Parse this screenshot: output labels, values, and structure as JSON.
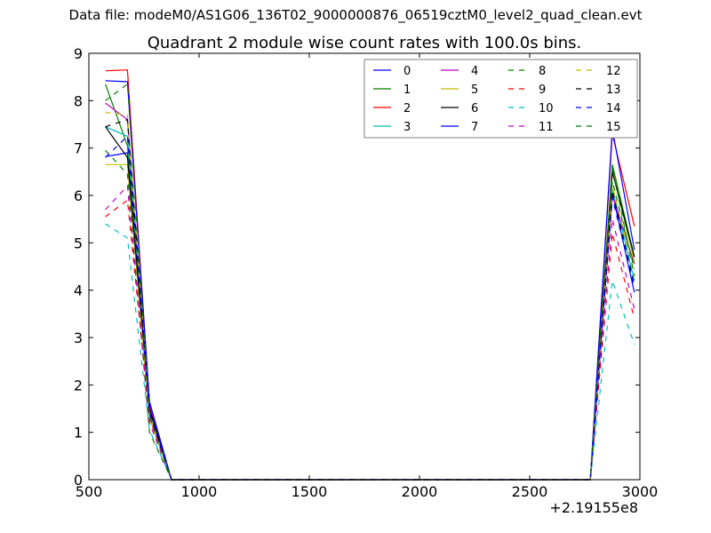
{
  "header": {
    "data_file": "Data file: modeM0/AS1G06_136T02_9000000876_06519cztM0_level2_quad_clean.evt"
  },
  "chart_data": {
    "type": "line",
    "title": "Quadrant 2 module wise count rates with 100.0s bins.",
    "xlabel": "",
    "ylabel": "",
    "x_offset_label": "+2.19155e8",
    "xlim": [
      500,
      3000
    ],
    "ylim": [
      0,
      9
    ],
    "x_ticks": [
      500,
      1000,
      1500,
      2000,
      2500,
      3000
    ],
    "y_ticks": [
      0,
      1,
      2,
      3,
      4,
      5,
      6,
      7,
      8,
      9
    ],
    "grid": false,
    "legend": {
      "location": "top-right",
      "columns": 4
    },
    "x": [
      575,
      675,
      775,
      875,
      975,
      1075,
      1175,
      1275,
      1375,
      1475,
      1575,
      1675,
      1775,
      1875,
      1975,
      2075,
      2175,
      2275,
      2375,
      2475,
      2575,
      2675,
      2775,
      2875,
      2975
    ],
    "series": [
      {
        "name": "0",
        "color": "#0000ff",
        "dash": "solid",
        "values": [
          6.82,
          6.9,
          1.55,
          0,
          0,
          0,
          0,
          0,
          0,
          0,
          0,
          0,
          0,
          0,
          0,
          0,
          0,
          0,
          0,
          0,
          0,
          0,
          0,
          6.05,
          3.95
        ]
      },
      {
        "name": "1",
        "color": "#008000",
        "dash": "solid",
        "values": [
          8.35,
          7.05,
          1.5,
          0,
          0,
          0,
          0,
          0,
          0,
          0,
          0,
          0,
          0,
          0,
          0,
          0,
          0,
          0,
          0,
          0,
          0,
          0,
          0,
          6.65,
          4.7
        ]
      },
      {
        "name": "2",
        "color": "#ff0000",
        "dash": "solid",
        "values": [
          8.63,
          8.65,
          1.6,
          0,
          0,
          0,
          0,
          0,
          0,
          0,
          0,
          0,
          0,
          0,
          0,
          0,
          0,
          0,
          0,
          0,
          0,
          0,
          0,
          7.3,
          5.35
        ]
      },
      {
        "name": "3",
        "color": "#00bfbf",
        "dash": "solid",
        "values": [
          7.45,
          7.25,
          1.45,
          0,
          0,
          0,
          0,
          0,
          0,
          0,
          0,
          0,
          0,
          0,
          0,
          0,
          0,
          0,
          0,
          0,
          0,
          0,
          0,
          6.15,
          4.2
        ]
      },
      {
        "name": "4",
        "color": "#bf00bf",
        "dash": "solid",
        "values": [
          7.95,
          7.6,
          1.55,
          0,
          0,
          0,
          0,
          0,
          0,
          0,
          0,
          0,
          0,
          0,
          0,
          0,
          0,
          0,
          0,
          0,
          0,
          0,
          0,
          6.0,
          4.55
        ]
      },
      {
        "name": "5",
        "color": "#bfbf00",
        "dash": "solid",
        "values": [
          6.65,
          6.65,
          1.3,
          0,
          0,
          0,
          0,
          0,
          0,
          0,
          0,
          0,
          0,
          0,
          0,
          0,
          0,
          0,
          0,
          0,
          0,
          0,
          0,
          6.55,
          4.6
        ]
      },
      {
        "name": "6",
        "color": "#000000",
        "dash": "solid",
        "values": [
          7.45,
          6.8,
          1.5,
          0,
          0,
          0,
          0,
          0,
          0,
          0,
          0,
          0,
          0,
          0,
          0,
          0,
          0,
          0,
          0,
          0,
          0,
          0,
          0,
          6.5,
          4.7
        ]
      },
      {
        "name": "7",
        "color": "#0000ff",
        "dash": "solid",
        "values": [
          8.42,
          8.4,
          1.65,
          0,
          0,
          0,
          0,
          0,
          0,
          0,
          0,
          0,
          0,
          0,
          0,
          0,
          0,
          0,
          0,
          0,
          0,
          0,
          0,
          7.4,
          4.85
        ]
      },
      {
        "name": "8",
        "color": "#008000",
        "dash": "dashed",
        "values": [
          6.95,
          6.45,
          1.0,
          0,
          0,
          0,
          0,
          0,
          0,
          0,
          0,
          0,
          0,
          0,
          0,
          0,
          0,
          0,
          0,
          0,
          0,
          0,
          0,
          6.3,
          4.45
        ]
      },
      {
        "name": "9",
        "color": "#ff0000",
        "dash": "dashed",
        "values": [
          5.55,
          5.9,
          1.3,
          0,
          0,
          0,
          0,
          0,
          0,
          0,
          0,
          0,
          0,
          0,
          0,
          0,
          0,
          0,
          0,
          0,
          0,
          0,
          0,
          5.2,
          3.4
        ]
      },
      {
        "name": "10",
        "color": "#00bfbf",
        "dash": "dashed",
        "values": [
          5.4,
          5.1,
          1.05,
          0,
          0,
          0,
          0,
          0,
          0,
          0,
          0,
          0,
          0,
          0,
          0,
          0,
          0,
          0,
          0,
          0,
          0,
          0,
          0,
          4.2,
          2.85
        ]
      },
      {
        "name": "11",
        "color": "#bf00bf",
        "dash": "dashed",
        "values": [
          5.7,
          6.2,
          1.2,
          0,
          0,
          0,
          0,
          0,
          0,
          0,
          0,
          0,
          0,
          0,
          0,
          0,
          0,
          0,
          0,
          0,
          0,
          0,
          0,
          5.5,
          3.6
        ]
      },
      {
        "name": "12",
        "color": "#bfbf00",
        "dash": "dashed",
        "values": [
          7.75,
          7.7,
          1.4,
          0,
          0,
          0,
          0,
          0,
          0,
          0,
          0,
          0,
          0,
          0,
          0,
          0,
          0,
          0,
          0,
          0,
          0,
          0,
          0,
          6.2,
          4.35
        ]
      },
      {
        "name": "13",
        "color": "#000000",
        "dash": "dashed",
        "values": [
          7.45,
          7.6,
          1.45,
          0,
          0,
          0,
          0,
          0,
          0,
          0,
          0,
          0,
          0,
          0,
          0,
          0,
          0,
          0,
          0,
          0,
          0,
          0,
          0,
          6.1,
          4.1
        ]
      },
      {
        "name": "14",
        "color": "#0000ff",
        "dash": "dashed",
        "values": [
          6.8,
          7.25,
          1.4,
          0,
          0,
          0,
          0,
          0,
          0,
          0,
          0,
          0,
          0,
          0,
          0,
          0,
          0,
          0,
          0,
          0,
          0,
          0,
          0,
          5.95,
          4.05
        ]
      },
      {
        "name": "15",
        "color": "#008000",
        "dash": "dashed",
        "values": [
          8.0,
          8.35,
          1.35,
          0,
          0,
          0,
          0,
          0,
          0,
          0,
          0,
          0,
          0,
          0,
          0,
          0,
          0,
          0,
          0,
          0,
          0,
          0,
          0,
          6.6,
          4.3
        ]
      }
    ]
  }
}
